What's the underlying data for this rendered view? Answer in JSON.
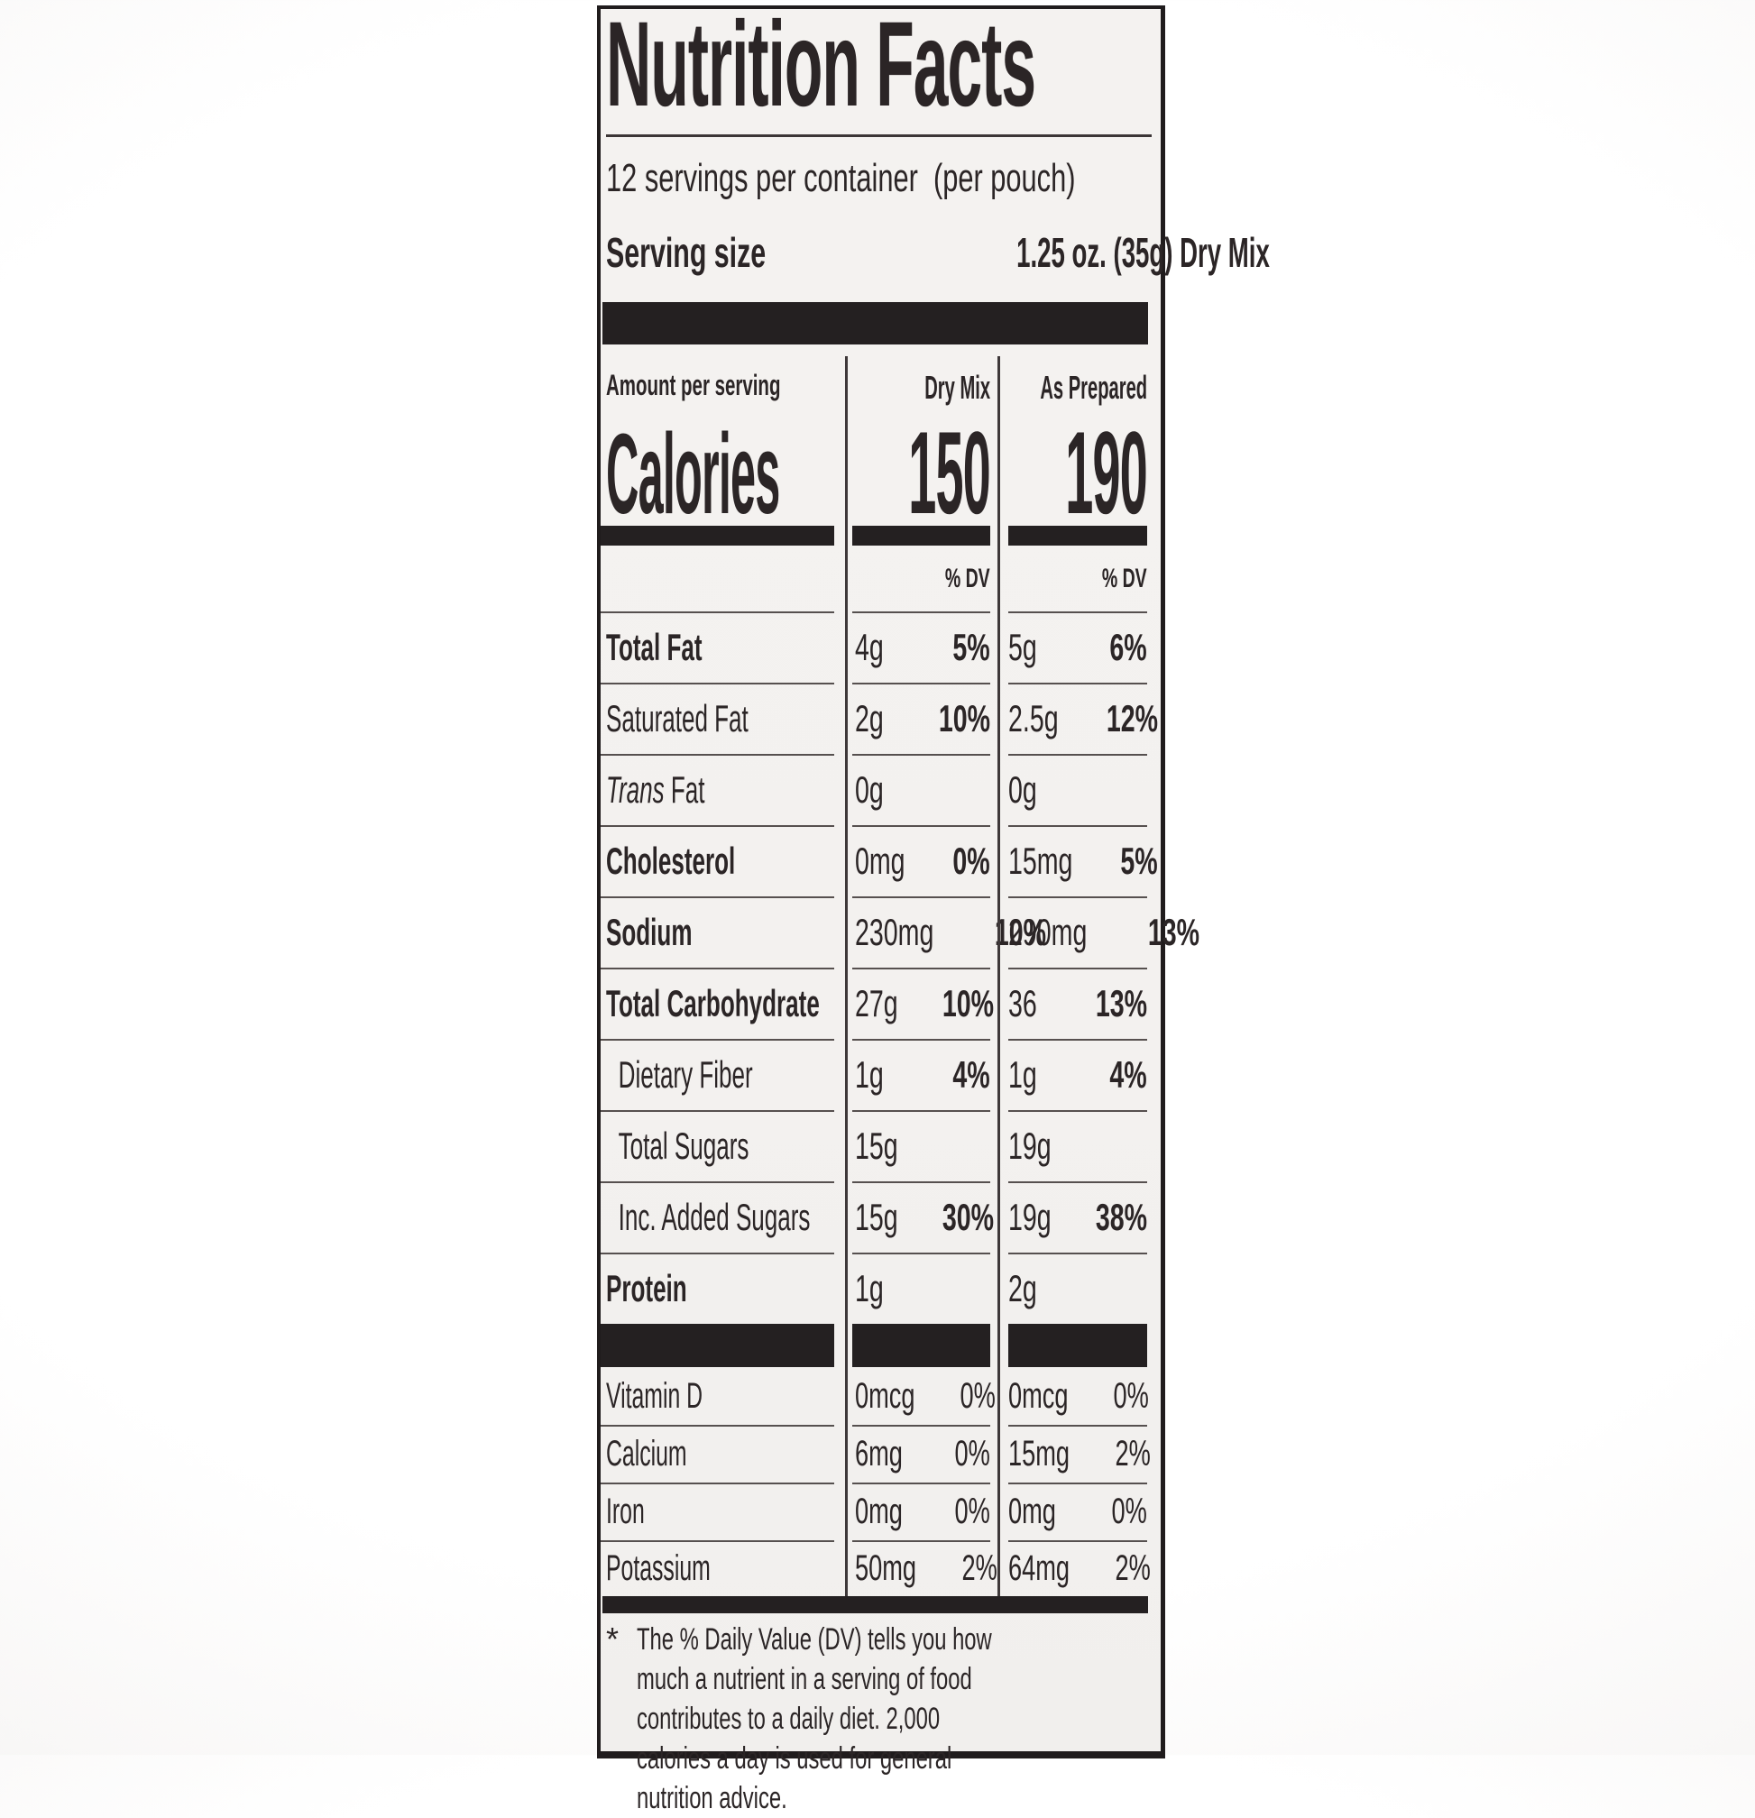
{
  "label": {
    "title": "Nutrition Facts",
    "servings_per_container": "12 servings per container  (per pouch)",
    "serving_size_label": "Serving size",
    "serving_size_value": "1.25 oz. (35g) Dry Mix",
    "amount_per_serving": "Amount per serving",
    "calories_label": "Calories",
    "columns": {
      "dry": {
        "name": "Dry Mix",
        "calories": "150"
      },
      "prepared": {
        "name": "As Prepared",
        "calories": "190"
      }
    },
    "dv_header": "% DV",
    "rows": [
      {
        "label": "Total Fat",
        "dry": {
          "amount": "4g",
          "dv": "5%"
        },
        "prepared": {
          "amount": "5g",
          "dv": "6%"
        }
      },
      {
        "label": "Saturated Fat",
        "dry": {
          "amount": "2g",
          "dv": "10%"
        },
        "prepared": {
          "amount": "2.5g",
          "dv": "12%"
        }
      },
      {
        "label_italic": "Trans",
        "label_rest": " Fat",
        "dry": {
          "amount": "0g",
          "dv": ""
        },
        "prepared": {
          "amount": "0g",
          "dv": ""
        }
      },
      {
        "label": "Cholesterol",
        "dry": {
          "amount": "0mg",
          "dv": "0%"
        },
        "prepared": {
          "amount": "15mg",
          "dv": "5%"
        }
      },
      {
        "label": "Sodium",
        "dry": {
          "amount": "230mg",
          "dv": "10%"
        },
        "prepared": {
          "amount": "290mg",
          "dv": "13%"
        }
      },
      {
        "label": "Total Carbohydrate",
        "dry": {
          "amount": "27g",
          "dv": "10%"
        },
        "prepared": {
          "amount": "36",
          "dv": "13%"
        }
      },
      {
        "label": "Dietary Fiber",
        "dry": {
          "amount": "1g",
          "dv": "4%"
        },
        "prepared": {
          "amount": "1g",
          "dv": "4%"
        }
      },
      {
        "label": "Total Sugars",
        "dry": {
          "amount": "15g",
          "dv": ""
        },
        "prepared": {
          "amount": "19g",
          "dv": ""
        }
      },
      {
        "label": "Inc. Added Sugars",
        "dry": {
          "amount": "15g",
          "dv": "30%"
        },
        "prepared": {
          "amount": "19g",
          "dv": "38%"
        }
      },
      {
        "label": "Protein",
        "dry": {
          "amount": "1g",
          "dv": ""
        },
        "prepared": {
          "amount": "2g",
          "dv": ""
        }
      }
    ],
    "micronutrients": [
      {
        "label": "Vitamin D",
        "dry": {
          "amount": "0mcg",
          "dv": "0%"
        },
        "prepared": {
          "amount": "0mcg",
          "dv": "0%"
        }
      },
      {
        "label": "Calcium",
        "dry": {
          "amount": "6mg",
          "dv": "0%"
        },
        "prepared": {
          "amount": "15mg",
          "dv": "2%"
        }
      },
      {
        "label": "Iron",
        "dry": {
          "amount": "0mg",
          "dv": "0%"
        },
        "prepared": {
          "amount": "0mg",
          "dv": "0%"
        }
      },
      {
        "label": "Potassium",
        "dry": {
          "amount": "50mg",
          "dv": "2%"
        },
        "prepared": {
          "amount": "64mg",
          "dv": "2%"
        }
      }
    ],
    "footnote_marker": "*",
    "footnote": "The % Daily Value (DV) tells you how much a nutrient in a serving of food contributes to a daily diet. 2,000 calories a  day is used for general nutrition advice."
  }
}
